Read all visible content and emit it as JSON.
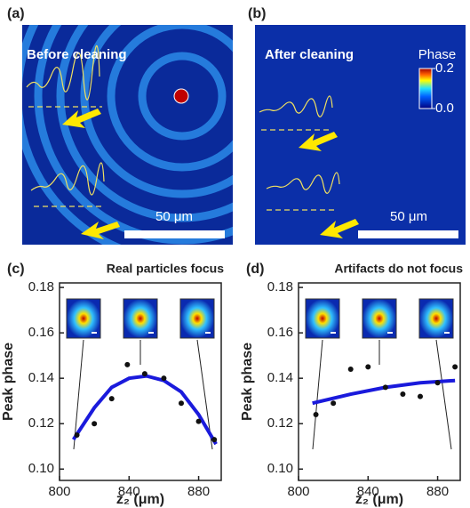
{
  "images": [
    {
      "label": "(a)",
      "title": "Before cleaning",
      "scale": "50 μm"
    },
    {
      "label": "(b)",
      "title": "After cleaning",
      "scale": "50 μm",
      "colorbar": {
        "title": "Phase",
        "ticks": [
          0.2,
          {
            "value": 0,
            "label": "0.0"
          }
        ]
      }
    }
  ],
  "chart_data": [
    {
      "type": "scatter",
      "panel_label": "(c)",
      "title": "Real particles focus",
      "x_label": "z₂ (μm)",
      "y_label": "Peak phase",
      "x": [
        810,
        820,
        830,
        839,
        849,
        860,
        870,
        880,
        889
      ],
      "values": [
        0.115,
        0.12,
        0.131,
        0.146,
        0.142,
        0.14,
        0.129,
        0.121,
        0.113
      ],
      "color": "#111111",
      "fit": {
        "x": [
          808,
          820,
          830,
          840,
          850,
          860,
          870,
          880,
          890
        ],
        "values": [
          0.113,
          0.127,
          0.136,
          0.14,
          0.141,
          0.139,
          0.134,
          0.124,
          0.111
        ],
        "color": "#1a1adc"
      },
      "xlim": [
        800,
        893
      ],
      "ylim": [
        0.095,
        0.182
      ],
      "xticks": [
        800,
        840,
        880
      ],
      "yticks": [
        {
          "value": 0.1,
          "label": "0.10"
        },
        0.12,
        0.14,
        0.16,
        0.18
      ]
    },
    {
      "type": "scatter",
      "panel_label": "(d)",
      "title": "Artifacts do not focus",
      "x_label": "z₂ (μm)",
      "y_label": "Peak phase",
      "x": [
        810,
        820,
        830,
        840,
        850,
        860,
        870,
        880,
        890
      ],
      "values": [
        0.124,
        0.129,
        0.144,
        0.145,
        0.136,
        0.133,
        0.132,
        0.138,
        0.145
      ],
      "color": "#111111",
      "fit": {
        "x": [
          808,
          830,
          850,
          870,
          890
        ],
        "values": [
          0.129,
          0.133,
          0.136,
          0.138,
          0.139
        ],
        "color": "#1a1adc"
      },
      "xlim": [
        800,
        893
      ],
      "ylim": [
        0.095,
        0.182
      ],
      "xticks": [
        800,
        840,
        880
      ],
      "yticks": [
        {
          "value": 0.1,
          "label": "0.10"
        },
        0.12,
        0.14,
        0.16,
        0.18
      ]
    }
  ]
}
